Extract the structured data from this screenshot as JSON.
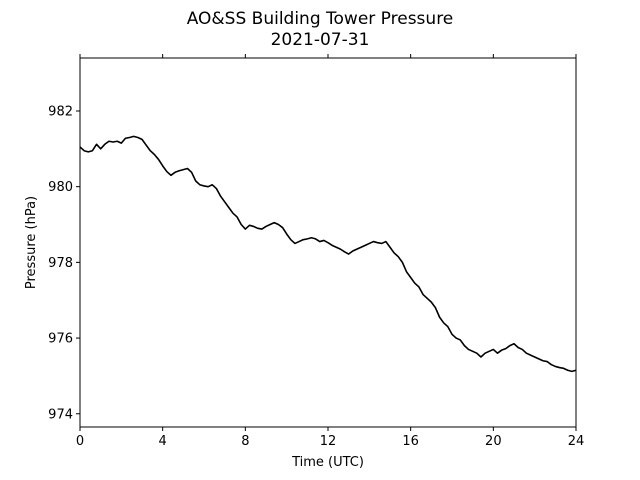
{
  "chart_data": {
    "type": "line",
    "title": "AO&SS Building Tower Pressure",
    "subtitle": "2021-07-31",
    "xlabel": "Time (UTC)",
    "ylabel": "Pressure (hPa)",
    "xlim": [
      0,
      24
    ],
    "ylim": [
      973.65,
      983.4
    ],
    "x_ticks": [
      0,
      4,
      8,
      12,
      16,
      20,
      24
    ],
    "y_ticks": [
      974,
      976,
      978,
      980,
      982
    ],
    "grid": false,
    "line_color": "#000000",
    "series": [
      {
        "x": [
          0,
          0.2,
          0.4,
          0.6,
          0.8,
          1.0,
          1.2,
          1.4,
          1.6,
          1.8,
          2.0,
          2.2,
          2.4,
          2.6,
          2.8,
          3.0,
          3.2,
          3.4,
          3.6,
          3.8,
          4.0,
          4.2,
          4.4,
          4.6,
          4.8,
          5.0,
          5.2,
          5.4,
          5.6,
          5.8,
          6.0,
          6.2,
          6.4,
          6.6,
          6.8,
          7.0,
          7.2,
          7.4,
          7.6,
          7.8,
          8.0,
          8.2,
          8.4,
          8.6,
          8.8,
          9.0,
          9.2,
          9.4,
          9.6,
          9.8,
          10.0,
          10.2,
          10.4,
          10.6,
          10.8,
          11.0,
          11.2,
          11.4,
          11.6,
          11.8,
          12.0,
          12.2,
          12.4,
          12.6,
          12.8,
          13.0,
          13.2,
          13.4,
          13.6,
          13.8,
          14.0,
          14.2,
          14.4,
          14.6,
          14.8,
          15.0,
          15.2,
          15.4,
          15.6,
          15.8,
          16.0,
          16.2,
          16.4,
          16.6,
          16.8,
          17.0,
          17.2,
          17.4,
          17.6,
          17.8,
          18.0,
          18.2,
          18.4,
          18.6,
          18.8,
          19.0,
          19.2,
          19.4,
          19.6,
          19.8,
          20.0,
          20.2,
          20.4,
          20.6,
          20.8,
          21.0,
          21.2,
          21.4,
          21.6,
          21.8,
          22.0,
          22.2,
          22.4,
          22.6,
          22.8,
          23.0,
          23.2,
          23.4,
          23.6,
          23.8,
          24.0
        ],
        "values": [
          981.05,
          980.95,
          980.92,
          980.95,
          981.12,
          981.0,
          981.12,
          981.2,
          981.18,
          981.2,
          981.15,
          981.28,
          981.3,
          981.33,
          981.3,
          981.25,
          981.1,
          980.95,
          980.85,
          980.72,
          980.55,
          980.4,
          980.3,
          980.38,
          980.42,
          980.45,
          980.48,
          980.38,
          980.15,
          980.05,
          980.02,
          980.0,
          980.05,
          979.95,
          979.75,
          979.6,
          979.45,
          979.3,
          979.2,
          979.0,
          978.88,
          978.98,
          978.95,
          978.9,
          978.88,
          978.95,
          979.0,
          979.05,
          979.0,
          978.92,
          978.75,
          978.6,
          978.5,
          978.55,
          978.6,
          978.62,
          978.65,
          978.62,
          978.55,
          978.58,
          978.52,
          978.45,
          978.4,
          978.35,
          978.28,
          978.22,
          978.3,
          978.35,
          978.4,
          978.45,
          978.5,
          978.55,
          978.52,
          978.5,
          978.55,
          978.4,
          978.25,
          978.15,
          978.0,
          977.75,
          977.6,
          977.45,
          977.35,
          977.15,
          977.05,
          976.95,
          976.8,
          976.55,
          976.4,
          976.3,
          976.1,
          976.0,
          975.95,
          975.8,
          975.7,
          975.65,
          975.6,
          975.5,
          975.6,
          975.65,
          975.7,
          975.6,
          975.68,
          975.72,
          975.8,
          975.85,
          975.75,
          975.7,
          975.6,
          975.55,
          975.5,
          975.45,
          975.4,
          975.38,
          975.3,
          975.25,
          975.22,
          975.2,
          975.15,
          975.12,
          975.15
        ]
      }
    ]
  }
}
